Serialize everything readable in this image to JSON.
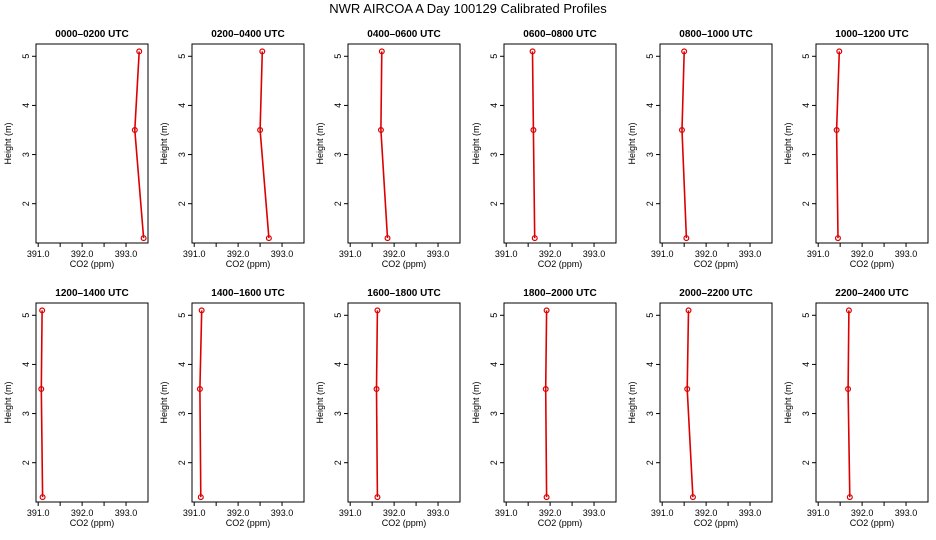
{
  "title": "NWR AIRCOA A   Day 100129   Calibrated Profiles",
  "chart_data": {
    "type": "line",
    "xlabel": "CO2 (ppm)",
    "ylabel": "Height (m)",
    "xlim": [
      390.95,
      393.5
    ],
    "ylim": [
      1.2,
      5.25
    ],
    "xticks": [
      391.0,
      391.5,
      392.0,
      392.5,
      393.0
    ],
    "xtick_labels": [
      "391.0",
      "",
      "392.0",
      "",
      "393.0"
    ],
    "yticks": [
      2,
      3,
      4,
      5
    ],
    "ytick_labels": [
      "2",
      "3",
      "4",
      "5"
    ],
    "line_color": "#dd0000",
    "grid": false,
    "panels": [
      {
        "title": "0000–0200 UTC",
        "heights": [
          1.3,
          3.5,
          5.1
        ],
        "co2": [
          393.4,
          393.2,
          393.3
        ]
      },
      {
        "title": "0200–0400 UTC",
        "heights": [
          1.3,
          3.5,
          5.1
        ],
        "co2": [
          392.7,
          392.5,
          392.55
        ]
      },
      {
        "title": "0400–0600 UTC",
        "heights": [
          1.3,
          3.5,
          5.1
        ],
        "co2": [
          391.85,
          391.7,
          391.72
        ]
      },
      {
        "title": "0600–0800 UTC",
        "heights": [
          1.3,
          3.5,
          5.1
        ],
        "co2": [
          391.65,
          391.62,
          391.6
        ]
      },
      {
        "title": "0800–1000 UTC",
        "heights": [
          1.3,
          3.5,
          5.1
        ],
        "co2": [
          391.55,
          391.45,
          391.5
        ]
      },
      {
        "title": "1000–1200 UTC",
        "heights": [
          1.3,
          3.5,
          5.1
        ],
        "co2": [
          391.45,
          391.42,
          391.48
        ]
      },
      {
        "title": "1200–1400 UTC",
        "heights": [
          1.3,
          3.5,
          5.1
        ],
        "co2": [
          391.1,
          391.07,
          391.09
        ]
      },
      {
        "title": "1400–1600 UTC",
        "heights": [
          1.3,
          3.5,
          5.1
        ],
        "co2": [
          391.15,
          391.13,
          391.17
        ]
      },
      {
        "title": "1600–1800 UTC",
        "heights": [
          1.3,
          3.5,
          5.1
        ],
        "co2": [
          391.62,
          391.6,
          391.62
        ]
      },
      {
        "title": "1800–2000 UTC",
        "heights": [
          1.3,
          3.5,
          5.1
        ],
        "co2": [
          391.92,
          391.9,
          391.92
        ]
      },
      {
        "title": "2000–2200 UTC",
        "heights": [
          1.3,
          3.5,
          5.1
        ],
        "co2": [
          391.7,
          391.57,
          391.6
        ]
      },
      {
        "title": "2200–2400 UTC",
        "heights": [
          1.3,
          3.5,
          5.1
        ],
        "co2": [
          391.72,
          391.68,
          391.7
        ]
      }
    ]
  }
}
